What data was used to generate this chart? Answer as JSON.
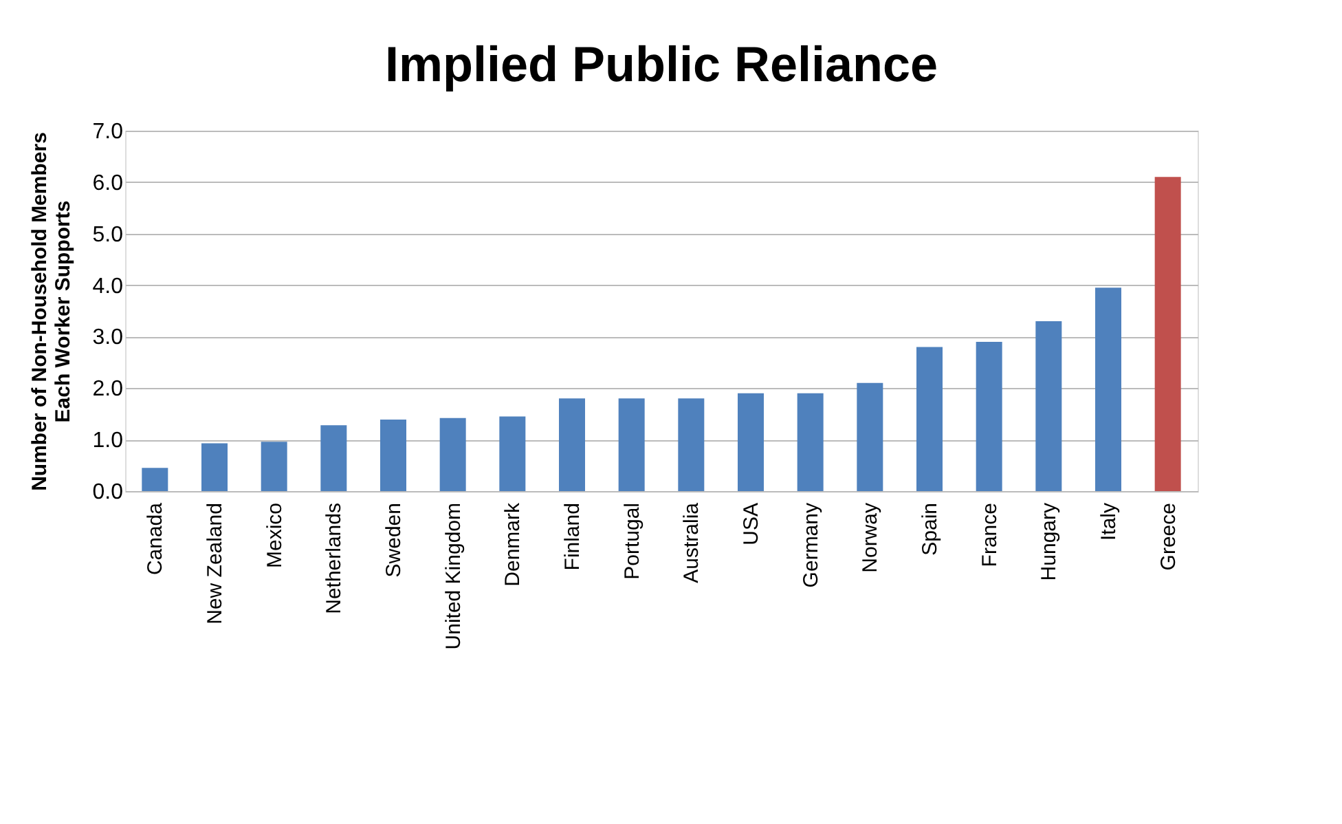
{
  "chart_data": {
    "type": "bar",
    "title": "Implied Public Reliance",
    "ylabel": "Number of Non-Household Members Each Worker Supports",
    "categories": [
      "Canada",
      "New Zealand",
      "Mexico",
      "Netherlands",
      "Sweden",
      "United Kingdom",
      "Denmark",
      "Finland",
      "Portugal",
      "Australia",
      "USA",
      "Germany",
      "Norway",
      "Spain",
      "France",
      "Hungary",
      "Italy",
      "Greece"
    ],
    "values": [
      0.45,
      0.93,
      0.96,
      1.28,
      1.39,
      1.42,
      1.45,
      1.8,
      1.8,
      1.8,
      1.9,
      1.9,
      2.1,
      2.8,
      2.9,
      3.3,
      3.95,
      6.1
    ],
    "colors": [
      "#4f81bd",
      "#4f81bd",
      "#4f81bd",
      "#4f81bd",
      "#4f81bd",
      "#4f81bd",
      "#4f81bd",
      "#4f81bd",
      "#4f81bd",
      "#4f81bd",
      "#4f81bd",
      "#4f81bd",
      "#4f81bd",
      "#4f81bd",
      "#4f81bd",
      "#4f81bd",
      "#4f81bd",
      "#c0504d"
    ],
    "ylim": [
      0,
      7
    ],
    "yticks": [
      {
        "value": 0,
        "label": "0.0"
      },
      {
        "value": 1,
        "label": "1.0"
      },
      {
        "value": 2,
        "label": "2.0"
      },
      {
        "value": 3,
        "label": "3.0"
      },
      {
        "value": 4,
        "label": "4.0"
      },
      {
        "value": 5,
        "label": "5.0"
      },
      {
        "value": 6,
        "label": "6.0"
      },
      {
        "value": 7,
        "label": "7.0"
      }
    ],
    "grid": "y"
  }
}
